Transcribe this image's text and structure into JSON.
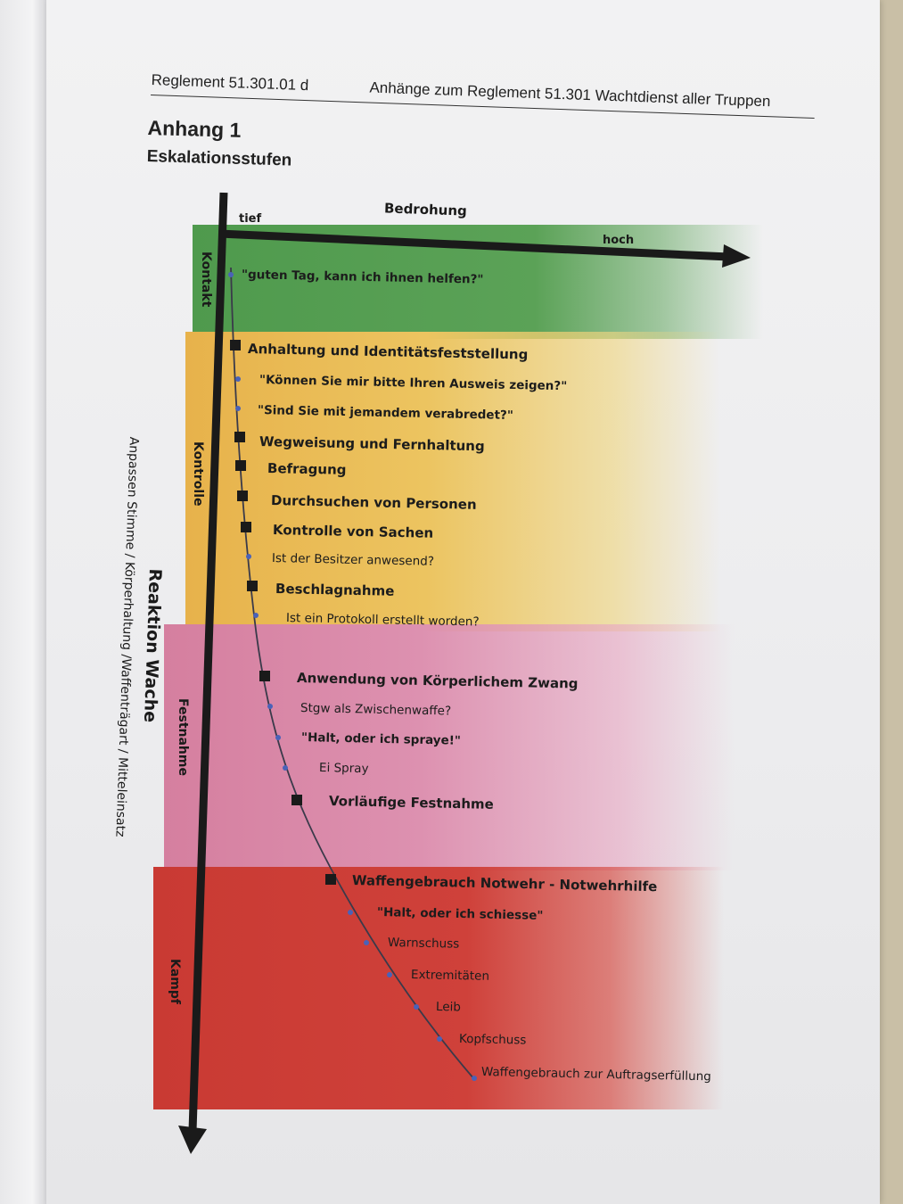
{
  "header": {
    "reglement": "Reglement 51.301.01 d",
    "anhaenge": "Anhänge zum Reglement 51.301 Wachtdienst aller Truppen"
  },
  "title": {
    "anhang": "Anhang 1",
    "subtitle": "Eskalationsstufen"
  },
  "diagram": {
    "x_axis": {
      "label": "Bedrohung",
      "low": "tief",
      "high": "hoch"
    },
    "y_axis": {
      "label": "Reaktion Wache",
      "sublabel": "Anpassen Stimme / Körperhaltung /Waffenträgart / Mitteleinsatz"
    },
    "bands": [
      {
        "label": "Kontakt",
        "color": "#5ba257"
      },
      {
        "label": "Kontrolle",
        "color": "#ecc460"
      },
      {
        "label": "Festnahme",
        "color": "#dd91b0"
      },
      {
        "label": "Kampf",
        "color": "#cf413a"
      }
    ],
    "steps": [
      {
        "text": "\"guten Tag, kann ich ihnen helfen?\"",
        "level": "minor"
      },
      {
        "text": "Anhaltung und Identitätsfeststellung",
        "level": "major"
      },
      {
        "text": "\"Können Sie mir bitte Ihren Ausweis zeigen?\"",
        "level": "minor"
      },
      {
        "text": "\"Sind Sie mit jemandem verabredet?\"",
        "level": "minor"
      },
      {
        "text": "Wegweisung und Fernhaltung",
        "level": "major"
      },
      {
        "text": "Befragung",
        "level": "major"
      },
      {
        "text": "Durchsuchen von Personen",
        "level": "major"
      },
      {
        "text": "Kontrolle von Sachen",
        "level": "major"
      },
      {
        "text": "Ist der Besitzer anwesend?",
        "level": "minor"
      },
      {
        "text": "Beschlagnahme",
        "level": "major"
      },
      {
        "text": "Ist ein Protokoll erstellt worden?",
        "level": "minor"
      },
      {
        "text": "Anwendung von Körperlichem Zwang",
        "level": "major"
      },
      {
        "text": "Stgw als Zwischenwaffe?",
        "level": "minor"
      },
      {
        "text": "\"Halt, oder ich spraye!\"",
        "level": "minor"
      },
      {
        "text": "Ei Spray",
        "level": "minor"
      },
      {
        "text": "Vorläufige Festnahme",
        "level": "major"
      },
      {
        "text": "Waffengebrauch Notwehr - Notwehrhilfe",
        "level": "major"
      },
      {
        "text": "\"Halt, oder ich schiesse\"",
        "level": "minor"
      },
      {
        "text": "Warnschuss",
        "level": "minor"
      },
      {
        "text": "Extremitäten",
        "level": "minor"
      },
      {
        "text": "Leib",
        "level": "minor"
      },
      {
        "text": "Kopfschuss",
        "level": "minor"
      },
      {
        "text": "Waffengebrauch zur Auftragserfüllung",
        "level": "minor"
      }
    ]
  }
}
